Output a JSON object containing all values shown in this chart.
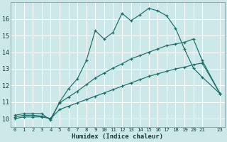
{
  "xlabel": "Humidex (Indice chaleur)",
  "background_color": "#cce8e8",
  "grid_color": "#ffffff",
  "line_color": "#1a6e6a",
  "xlim": [
    -0.5,
    23.5
  ],
  "ylim": [
    9.5,
    17.0
  ],
  "xticks": [
    0,
    1,
    2,
    3,
    4,
    5,
    6,
    7,
    8,
    9,
    10,
    11,
    12,
    13,
    14,
    15,
    16,
    17,
    18,
    19,
    20,
    21,
    23
  ],
  "yticks": [
    10,
    11,
    12,
    13,
    14,
    15,
    16
  ],
  "line1_x": [
    0,
    1,
    2,
    3,
    4,
    5,
    6,
    7,
    8,
    9,
    10,
    11,
    12,
    13,
    14,
    15,
    16,
    17,
    18,
    19,
    20,
    21,
    23
  ],
  "line1_y": [
    10.2,
    10.3,
    10.3,
    10.3,
    9.9,
    11.0,
    11.8,
    12.4,
    13.5,
    15.3,
    14.8,
    15.2,
    16.35,
    15.9,
    16.25,
    16.65,
    16.5,
    16.2,
    15.45,
    14.2,
    13.05,
    12.5,
    11.5
  ],
  "line2_x": [
    0,
    1,
    2,
    3,
    4,
    5,
    6,
    7,
    8,
    9,
    10,
    11,
    12,
    13,
    14,
    15,
    16,
    17,
    18,
    19,
    20,
    21,
    23
  ],
  "line2_y": [
    10.1,
    10.2,
    10.2,
    10.15,
    10.0,
    10.95,
    11.3,
    11.65,
    12.05,
    12.45,
    12.75,
    13.05,
    13.3,
    13.6,
    13.8,
    14.0,
    14.2,
    14.4,
    14.5,
    14.6,
    14.8,
    13.5,
    11.5
  ],
  "line3_x": [
    0,
    1,
    2,
    3,
    4,
    5,
    6,
    7,
    8,
    9,
    10,
    11,
    12,
    13,
    14,
    15,
    16,
    17,
    18,
    19,
    20,
    21,
    23
  ],
  "line3_y": [
    10.0,
    10.1,
    10.1,
    10.1,
    10.0,
    10.55,
    10.75,
    10.95,
    11.15,
    11.35,
    11.55,
    11.75,
    11.95,
    12.15,
    12.35,
    12.55,
    12.7,
    12.85,
    13.0,
    13.1,
    13.25,
    13.35,
    11.5
  ]
}
